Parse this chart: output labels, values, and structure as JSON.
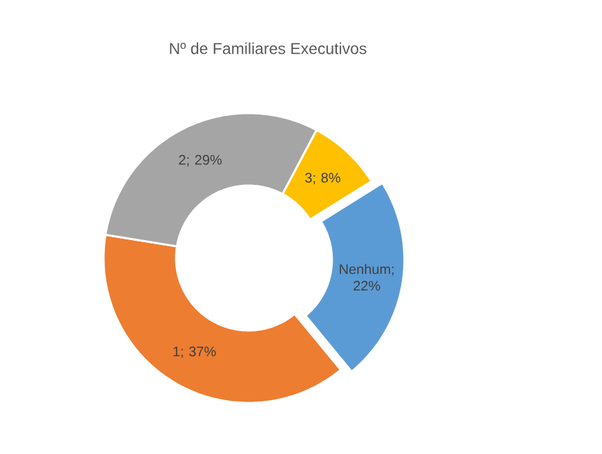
{
  "chart_data": {
    "type": "donut",
    "title": "Nº de Familiares Executivos",
    "categories": [
      "Nenhum",
      "1",
      "2",
      "3"
    ],
    "values": [
      22,
      37,
      29,
      8
    ],
    "colors": [
      "#5b9bd5",
      "#ed7d31",
      "#a5a5a5",
      "#ffc000"
    ],
    "value_labels": [
      "; 22%",
      "; 37%",
      "; 29%",
      "; 8%"
    ]
  }
}
